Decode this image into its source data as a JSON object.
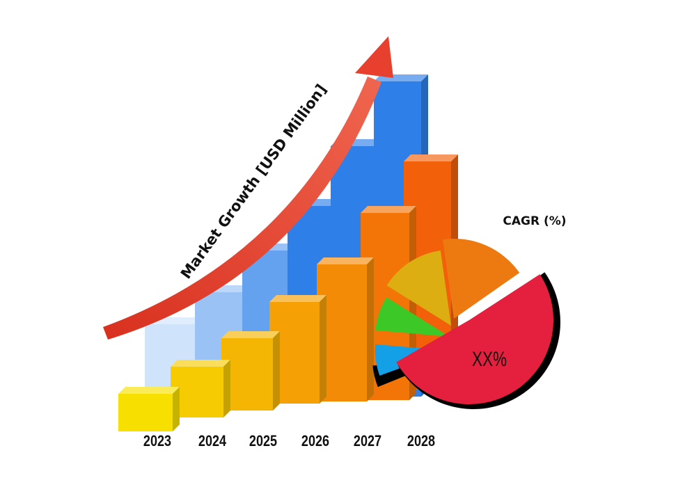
{
  "chart_data": {
    "type": "bar",
    "title": "",
    "ylabel": "Market Growth [USD Million]",
    "categories": [
      "2023",
      "2024",
      "2025",
      "2026",
      "2027",
      "2028"
    ],
    "pie": {
      "label": "CAGR (%)",
      "highlight_value": "XX%"
    },
    "colors": {
      "arrow": "#e8402e",
      "back_bars": "#2f7fe8",
      "front_bars_start": "#f7e000",
      "front_bars_end": "#f2600a",
      "pie_slices": [
        "#e51f3e",
        "#ec7a10",
        "#dcae12",
        "#3cc927",
        "#14a0e6"
      ]
    }
  }
}
